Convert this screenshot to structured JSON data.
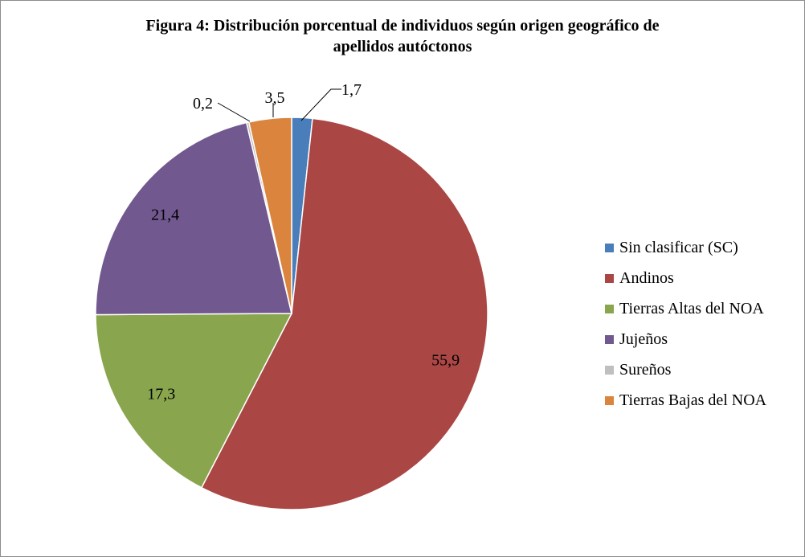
{
  "chart_data": {
    "type": "pie",
    "title_lines": [
      "Figura 4: Distribución porcentual de individuos según origen geográfico de",
      "apellidos autóctonos"
    ],
    "slices": [
      {
        "name": "Sin clasificar (SC)",
        "value": 1.7,
        "label": "1,7",
        "color": "#4a7ebb"
      },
      {
        "name": "Andinos",
        "value": 55.9,
        "label": "55,9",
        "color": "#aa4644"
      },
      {
        "name": "Tierras Altas del NOA",
        "value": 17.3,
        "label": "17,3",
        "color": "#89a54e"
      },
      {
        "name": "Jujeños",
        "value": 21.4,
        "label": "21,4",
        "color": "#71588f"
      },
      {
        "name": "Sureños",
        "value": 0.2,
        "label": "0,2",
        "color": "#bfbfbf"
      },
      {
        "name": "Tierras Bajas del NOA",
        "value": 3.5,
        "label": "3,5",
        "color": "#db843d"
      }
    ],
    "start": "12 o'clock, clockwise",
    "legend_position": "right",
    "data_labels": true
  }
}
